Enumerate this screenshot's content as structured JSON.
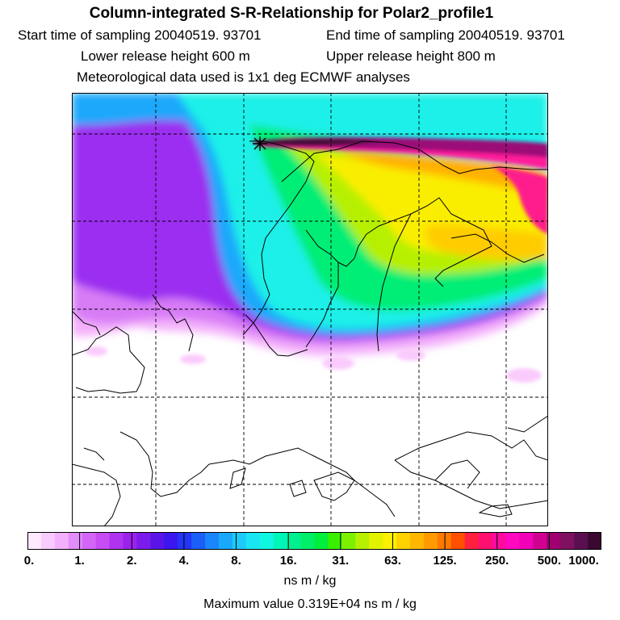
{
  "header": {
    "title": "Column-integrated S-R-Relationship for Polar2_profile1",
    "start_time": "Start time of sampling 20040519. 93701",
    "end_time": "End time of sampling 20040519. 93701",
    "lower_release": "Lower release height  600 m",
    "upper_release": "Upper release height  800 m",
    "met_data": "Meteorological data used is 1x1 deg ECMWF analyses"
  },
  "colorbar": {
    "tick_labels": [
      "0.",
      "1.",
      "2.",
      "4.",
      "8.",
      "16.",
      "31.",
      "63.",
      "125.",
      "250.",
      "500.",
      "1000."
    ],
    "colors": [
      "#ffe9ff",
      "#f9ccff",
      "#f3b1fd",
      "#e38cfb",
      "#d466f7",
      "#c84cf4",
      "#b033f0",
      "#9c22ee",
      "#7a1ceb",
      "#5a14e6",
      "#3b16ef",
      "#2435f5",
      "#1b5ef8",
      "#1a86fb",
      "#1aa8fb",
      "#1ecafb",
      "#1ae6f3",
      "#0ff7e0",
      "#00f5b8",
      "#00f090",
      "#00ee68",
      "#00ee3c",
      "#38f000",
      "#7df000",
      "#b6f000",
      "#e2f200",
      "#faf000",
      "#ffd200",
      "#ffb700",
      "#ff9a00",
      "#ff7a00",
      "#ff4f00",
      "#ff2040",
      "#ff1070",
      "#ff0aa0",
      "#ff08c0",
      "#f000b8",
      "#d00090",
      "#a00070",
      "#801060",
      "#5a1050",
      "#3a0830"
    ],
    "units": "ns m / kg"
  },
  "footer": {
    "max_value": "Maximum value  0.319E+04 ns m / kg"
  }
}
